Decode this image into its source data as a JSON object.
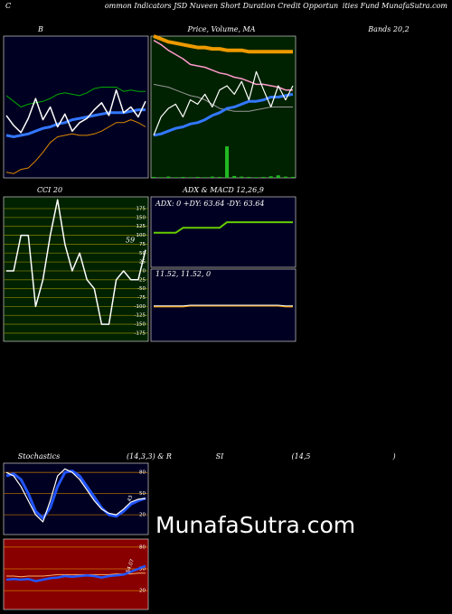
{
  "header": {
    "left": "C",
    "middle": "ommon Indicators JSD Nuveen Short Duration Credit Opportun",
    "right": "ities Fund MunafaSutra.com"
  },
  "watermark": "MunafaSutra.com",
  "chart_data": [
    {
      "type": "line",
      "title_parts": [
        "B",
        "Bands 20,2"
      ],
      "background": "#000022",
      "ylim": [
        0,
        100
      ],
      "series": [
        {
          "color": "#00aa00",
          "width": 1,
          "values": [
            58,
            54,
            50,
            52,
            53,
            54,
            56,
            59,
            60,
            59,
            58,
            60,
            63,
            64,
            64,
            64,
            61,
            62,
            61,
            61
          ]
        },
        {
          "color": "#dd8800",
          "width": 1,
          "values": [
            4,
            3,
            6,
            7,
            12,
            18,
            25,
            29,
            30,
            31,
            30,
            30,
            31,
            33,
            36,
            39,
            39,
            41,
            39,
            36
          ]
        },
        {
          "color": "#3377ff",
          "width": 3,
          "values": [
            30,
            29,
            30,
            31,
            33,
            35,
            36,
            38,
            39,
            41,
            42,
            43,
            44,
            45,
            46,
            46,
            46,
            47,
            48,
            48
          ]
        },
        {
          "color": "#ffffff",
          "width": 1.5,
          "values": [
            44,
            37,
            32,
            42,
            56,
            41,
            50,
            36,
            45,
            33,
            39,
            42,
            48,
            53,
            44,
            62,
            46,
            50,
            43,
            54
          ]
        }
      ]
    },
    {
      "type": "line",
      "title_parts": [
        "Price, Volume, MA"
      ],
      "background": "#002200",
      "ylim": [
        0,
        100
      ],
      "y2lim": [
        0,
        450
      ],
      "series": [
        {
          "type": "bar",
          "axis": "y2",
          "color": "#22bb22",
          "values": [
            3,
            2,
            4,
            2,
            3,
            2,
            3,
            2,
            4,
            3,
            100,
            6,
            4,
            3,
            2,
            3,
            5,
            8,
            4,
            3
          ]
        },
        {
          "color": "#ee9900",
          "width": 4,
          "values": [
            100,
            98,
            96,
            95,
            94,
            93,
            92,
            92,
            91,
            91,
            90,
            90,
            90,
            89,
            89,
            89,
            89,
            89,
            89,
            89
          ]
        },
        {
          "color": "#ff99cc",
          "width": 1.5,
          "values": [
            97,
            94,
            90,
            87,
            84,
            80,
            79,
            78,
            76,
            74,
            73,
            71,
            70,
            68,
            66,
            66,
            65,
            64,
            62,
            62
          ]
        },
        {
          "color": "#999999",
          "width": 1,
          "values": [
            66,
            65,
            64,
            62,
            60,
            58,
            57,
            55,
            52,
            49,
            48,
            47,
            47,
            47,
            48,
            49,
            50,
            50,
            50,
            50
          ]
        },
        {
          "color": "#3377ff",
          "width": 3,
          "values": [
            30,
            31,
            33,
            35,
            36,
            38,
            39,
            41,
            44,
            46,
            49,
            50,
            52,
            54,
            54,
            55,
            57,
            57,
            58,
            59
          ]
        },
        {
          "color": "#ffffff",
          "width": 1.2,
          "values": [
            30,
            43,
            49,
            52,
            43,
            55,
            52,
            59,
            50,
            62,
            65,
            59,
            68,
            55,
            75,
            62,
            50,
            65,
            55,
            65
          ]
        }
      ]
    },
    {
      "type": "line",
      "title_parts": [
        "CCI 20"
      ],
      "background": "#002200",
      "grid_color": "#777700",
      "ylim": [
        -198,
        208
      ],
      "yticks": [
        175,
        150,
        125,
        100,
        75,
        50,
        25,
        0,
        -25,
        -50,
        -75,
        -100,
        -125,
        -150,
        -175
      ],
      "label_last": true,
      "label_rotate": false,
      "series": [
        {
          "color": "#ffffff",
          "width": 1.5,
          "values": [
            0,
            0,
            100,
            100,
            -100,
            -25,
            100,
            200,
            75,
            0,
            50,
            -25,
            -50,
            -150,
            -150,
            -25,
            0,
            -25,
            -25,
            59
          ]
        }
      ]
    },
    {
      "type": "line",
      "title_parts": [
        "ADX  & MACD 12,26,9"
      ],
      "annotation": "ADX: 0  +DY: 63.64  -DY: 63.64",
      "background": "#000022",
      "ylim": [
        0,
        100
      ],
      "series": [
        {
          "color": "#66cc00",
          "width": 2,
          "values": [
            49,
            49,
            49,
            49,
            56,
            56,
            56,
            56,
            56,
            56,
            64,
            64,
            64,
            64,
            64,
            64,
            64,
            64,
            64,
            64
          ]
        }
      ]
    },
    {
      "type": "line",
      "title_parts": [],
      "annotation": "11.52,  11.52,  0",
      "background": "#000022",
      "ylim": [
        0,
        100
      ],
      "series": [
        {
          "color": "#ee9900",
          "width": 1.5,
          "values": [
            48,
            48,
            48,
            48,
            48,
            49,
            49,
            49,
            49,
            49,
            49,
            49,
            49,
            49,
            49,
            49,
            49,
            49,
            48,
            48
          ]
        },
        {
          "color": "#ffffff",
          "width": 1,
          "values": [
            49,
            49,
            49,
            49,
            49,
            50,
            50,
            50,
            50,
            50,
            50,
            50,
            50,
            50,
            50,
            50,
            50,
            50,
            49,
            49
          ]
        }
      ]
    },
    {
      "type": "line",
      "title_parts": [
        "Stochastics",
        "(14,3,3) & R",
        "SI",
        "(14,5",
        ")"
      ],
      "background": "#000022",
      "grid_color": "#aa6600",
      "ylim": [
        -8,
        93
      ],
      "yticks": [
        80,
        50,
        20
      ],
      "label_last": true,
      "label_rotate": true,
      "series": [
        {
          "color": "#2255ff",
          "width": 3,
          "values": [
            75,
            78,
            70,
            50,
            25,
            15,
            30,
            60,
            80,
            82,
            75,
            60,
            45,
            30,
            20,
            18,
            25,
            35,
            40,
            43.33
          ]
        },
        {
          "color": "#ffffff",
          "width": 1.2,
          "values": [
            80,
            75,
            60,
            40,
            20,
            10,
            40,
            75,
            85,
            80,
            70,
            55,
            40,
            28,
            22,
            20,
            28,
            38,
            42,
            43
          ]
        }
      ]
    },
    {
      "type": "line",
      "title_parts": [],
      "background": "#880000",
      "grid_color": "#cc7700",
      "ylim": [
        -6,
        91
      ],
      "yticks": [
        80,
        50,
        20
      ],
      "label_last": true,
      "label_rotate": true,
      "series": [
        {
          "color": "#ffaa66",
          "width": 1,
          "values": [
            40,
            40,
            39,
            40,
            40,
            40,
            41,
            42,
            42,
            42,
            42,
            42,
            42,
            42,
            42,
            43,
            43,
            43,
            44,
            44
          ]
        },
        {
          "color": "#2255ff",
          "width": 2.5,
          "values": [
            35,
            36,
            35,
            36,
            33,
            35,
            37,
            38,
            40,
            39,
            40,
            41,
            40,
            38,
            40,
            41,
            42,
            46,
            50,
            54.07
          ]
        }
      ]
    }
  ]
}
